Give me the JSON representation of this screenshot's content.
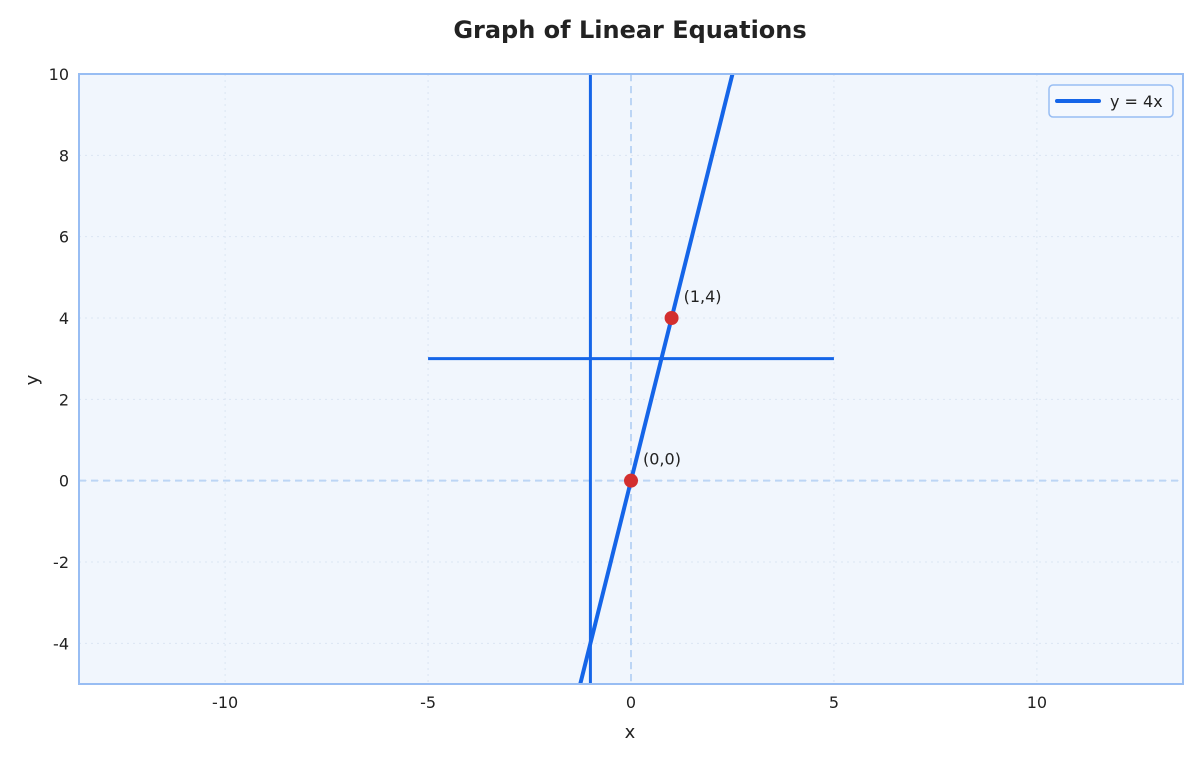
{
  "chart_data": {
    "type": "line",
    "title": "Graph of Linear Equations",
    "xlabel": "x",
    "ylabel": "y",
    "xlim": [
      -13.6,
      13.6
    ],
    "ylim": [
      -5,
      10
    ],
    "xticks": [
      -10,
      -5,
      0,
      5,
      10
    ],
    "yticks": [
      -4,
      -2,
      0,
      2,
      4,
      6,
      8,
      10
    ],
    "grid": true,
    "legend_position": "top-right",
    "series": [
      {
        "name": "y = 4x",
        "x": [
          -1.25,
          2.5
        ],
        "y": [
          -5,
          10
        ],
        "color": "#1565e8",
        "in_legend": true
      },
      {
        "x": [
          -1,
          -1
        ],
        "y": [
          -5,
          10
        ],
        "color": "#1565e8",
        "in_legend": false
      },
      {
        "x": [
          -5,
          5
        ],
        "y": [
          3,
          3
        ],
        "color": "#1565e8",
        "in_legend": false
      }
    ],
    "points": [
      {
        "x": 0,
        "y": 0,
        "label": "(0,0)",
        "color": "#d32f2f"
      },
      {
        "x": 1,
        "y": 4,
        "label": "(1,4)",
        "color": "#d32f2f"
      }
    ],
    "reference_lines": [
      {
        "axis": "x",
        "value": 0,
        "style": "dashed"
      },
      {
        "axis": "y",
        "value": 0,
        "style": "dashed"
      }
    ],
    "colors": {
      "background": "#f1f6fd",
      "frame": "#98bdf3",
      "grid": "#dbe5f2",
      "reference": "#bcd5f5"
    }
  }
}
